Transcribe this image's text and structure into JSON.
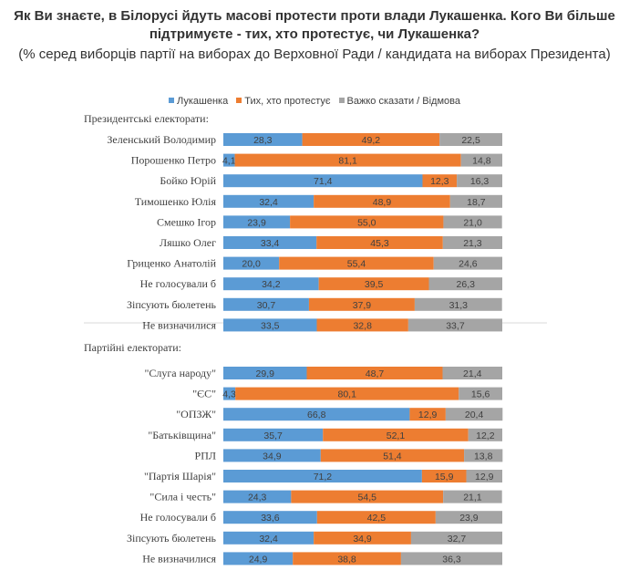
{
  "title": "Як Ви знаєте, в Білорусі йдуть масові протести проти влади Лукашенка. Кого Ви більше підтримуєте - тих, хто протестує, чи Лукашенка?",
  "subtitle": "(% серед виборців партії на виборах до Верховної Ради / кандидата на виборах Президента)",
  "colors": {
    "lukashenko": "#5B9BD5",
    "protesters": "#ED7D31",
    "hard_to_say": "#A5A5A5"
  },
  "chart_data": {
    "type": "bar",
    "stacked": true,
    "orientation": "horizontal",
    "xlim": [
      0,
      100
    ],
    "grid": false,
    "legend_position": "top",
    "series_names": [
      "Лукашенка",
      "Тих, хто протестує",
      "Важко сказати / Відмова"
    ],
    "groups": [
      {
        "label": "Президентські електорати:",
        "rows": [
          {
            "category": "Зеленський Володимир",
            "values": [
              "28,3",
              "49,2",
              "22,5"
            ]
          },
          {
            "category": "Порошенко Петро",
            "values": [
              "4,1",
              "81,1",
              "14,8"
            ]
          },
          {
            "category": "Бойко Юрій",
            "values": [
              "71,4",
              "12,3",
              "16,3"
            ]
          },
          {
            "category": "Тимошенко Юлія",
            "values": [
              "32,4",
              "48,9",
              "18,7"
            ]
          },
          {
            "category": "Смешко Ігор",
            "values": [
              "23,9",
              "55,0",
              "21,0"
            ]
          },
          {
            "category": "Ляшко Олег",
            "values": [
              "33,4",
              "45,3",
              "21,3"
            ]
          },
          {
            "category": "Гриценко Анатолій",
            "values": [
              "20,0",
              "55,4",
              "24,6"
            ]
          },
          {
            "category": "Не голосували б",
            "values": [
              "34,2",
              "39,5",
              "26,3"
            ]
          },
          {
            "category": "Зіпсують бюлетень",
            "values": [
              "30,7",
              "37,9",
              "31,3"
            ]
          },
          {
            "category": "Не визначилися",
            "values": [
              "33,5",
              "32,8",
              "33,7"
            ]
          }
        ]
      },
      {
        "label": "Партійні електорати:",
        "rows": [
          {
            "category": "\"Слуга народу\"",
            "values": [
              "29,9",
              "48,7",
              "21,4"
            ]
          },
          {
            "category": "\"ЄС\"",
            "values": [
              "4,3",
              "80,1",
              "15,6"
            ]
          },
          {
            "category": "\"ОПЗЖ\"",
            "values": [
              "66,8",
              "12,9",
              "20,4"
            ]
          },
          {
            "category": "\"Батьківщина\"",
            "values": [
              "35,7",
              "52,1",
              "12,2"
            ]
          },
          {
            "category": "РПЛ",
            "values": [
              "34,9",
              "51,4",
              "13,8"
            ]
          },
          {
            "category": "\"Партія Шарія\"",
            "values": [
              "71,2",
              "15,9",
              "12,9"
            ]
          },
          {
            "category": "\"Сила і честь\"",
            "values": [
              "24,3",
              "54,5",
              "21,1"
            ]
          },
          {
            "category": "Не голосували б",
            "values": [
              "33,6",
              "42,5",
              "23,9"
            ]
          },
          {
            "category": "Зіпсують бюлетень",
            "values": [
              "32,4",
              "34,9",
              "32,7"
            ]
          },
          {
            "category": "Не визначилися",
            "values": [
              "24,9",
              "38,8",
              "36,3"
            ]
          }
        ]
      }
    ]
  }
}
